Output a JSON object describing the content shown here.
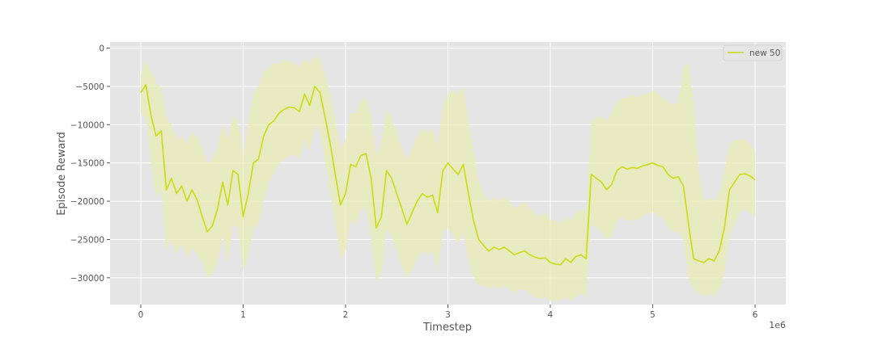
{
  "chart_data": {
    "type": "line",
    "title": "",
    "xlabel": "Timestep",
    "ylabel": "Episode Reward",
    "x_offset_label": "1e6",
    "xlim": [
      -0.3,
      6.3
    ],
    "ylim": [
      -33500,
      800
    ],
    "xticks": [
      0,
      1,
      2,
      3,
      4,
      5,
      6
    ],
    "xtick_labels": [
      "0",
      "1",
      "2",
      "3",
      "4",
      "5",
      "6"
    ],
    "yticks": [
      0,
      -5000,
      -10000,
      -15000,
      -20000,
      -25000,
      -30000
    ],
    "ytick_labels": [
      "0",
      "−5000",
      "−10000",
      "−15000",
      "−20000",
      "−25000",
      "−30000"
    ],
    "grid": true,
    "legend": {
      "placement": "top-right",
      "entries": [
        "new 50"
      ]
    },
    "colors": {
      "series": "#c8dc14",
      "band": "#e8ebb4",
      "background": "#e5e5e5",
      "grid": "#ffffff"
    },
    "series": [
      {
        "name": "new 50",
        "x": [
          0,
          0.05,
          0.1,
          0.15,
          0.2,
          0.25,
          0.3,
          0.35,
          0.4,
          0.45,
          0.5,
          0.55,
          0.6,
          0.65,
          0.7,
          0.75,
          0.8,
          0.85,
          0.9,
          0.95,
          1.0,
          1.05,
          1.1,
          1.15,
          1.2,
          1.25,
          1.3,
          1.35,
          1.4,
          1.45,
          1.5,
          1.55,
          1.6,
          1.65,
          1.7,
          1.75,
          1.8,
          1.85,
          1.9,
          1.95,
          2.0,
          2.05,
          2.1,
          2.15,
          2.2,
          2.25,
          2.3,
          2.35,
          2.4,
          2.45,
          2.5,
          2.55,
          2.6,
          2.65,
          2.7,
          2.75,
          2.8,
          2.85,
          2.9,
          2.95,
          3.0,
          3.05,
          3.1,
          3.15,
          3.2,
          3.25,
          3.3,
          3.35,
          3.4,
          3.45,
          3.5,
          3.55,
          3.6,
          3.65,
          3.7,
          3.75,
          3.8,
          3.85,
          3.9,
          3.95,
          4.0,
          4.05,
          4.1,
          4.15,
          4.2,
          4.25,
          4.3,
          4.35,
          4.4,
          4.45,
          4.5,
          4.55,
          4.6,
          4.65,
          4.7,
          4.75,
          4.8,
          4.85,
          4.9,
          4.95,
          5.0,
          5.05,
          5.1,
          5.15,
          5.2,
          5.25,
          5.3,
          5.35,
          5.4,
          5.45,
          5.5,
          5.55,
          5.6,
          5.65,
          5.7,
          5.75,
          5.8,
          5.85,
          5.9,
          5.95,
          6.0
        ],
        "values": [
          -5800,
          -4800,
          -8800,
          -11500,
          -10800,
          -18500,
          -17000,
          -19000,
          -18000,
          -20000,
          -18500,
          -19800,
          -22000,
          -24000,
          -23200,
          -21000,
          -17500,
          -20500,
          -16000,
          -16500,
          -22000,
          -19000,
          -15000,
          -14500,
          -11500,
          -10000,
          -9500,
          -8500,
          -8000,
          -7700,
          -7800,
          -8300,
          -6000,
          -7500,
          -5000,
          -5800,
          -9000,
          -12500,
          -16500,
          -20500,
          -19000,
          -15200,
          -15500,
          -14000,
          -13800,
          -17000,
          -23500,
          -22000,
          -16000,
          -17000,
          -19000,
          -21000,
          -23000,
          -21500,
          -20000,
          -19000,
          -19500,
          -19200,
          -21500,
          -16000,
          -15000,
          -15800,
          -16500,
          -15200,
          -19000,
          -22500,
          -25000,
          -25800,
          -26500,
          -26000,
          -26300,
          -26000,
          -26500,
          -27000,
          -26700,
          -26500,
          -27000,
          -27300,
          -27500,
          -27400,
          -28000,
          -28200,
          -28300,
          -27500,
          -28000,
          -27200,
          -27000,
          -27500,
          -16500,
          -17000,
          -17500,
          -18500,
          -17800,
          -16000,
          -15500,
          -15800,
          -15600,
          -15700,
          -15400,
          -15200,
          -15000,
          -15300,
          -15500,
          -16500,
          -17000,
          -16800,
          -18000,
          -23000,
          -27500,
          -27800,
          -28000,
          -27500,
          -27800,
          -26500,
          -23500,
          -18500,
          -17500,
          -16500,
          -16400,
          -16700,
          -17200
        ],
        "band_upper": [
          -3500,
          -1500,
          -3000,
          -4500,
          -5000,
          -9000,
          -10000,
          -12000,
          -11500,
          -12500,
          -11000,
          -11500,
          -13000,
          -15000,
          -14500,
          -13000,
          -10000,
          -12000,
          -9000,
          -9500,
          -14000,
          -10000,
          -6000,
          -5000,
          -3000,
          -2500,
          -2000,
          -2000,
          -1500,
          -1800,
          -2000,
          -2500,
          -1500,
          -2000,
          -1000,
          -1500,
          -3500,
          -6000,
          -9500,
          -13000,
          -12000,
          -8500,
          -8500,
          -7000,
          -6500,
          -9000,
          -14000,
          -12500,
          -8000,
          -9000,
          -11000,
          -13000,
          -14500,
          -13000,
          -11500,
          -10500,
          -11000,
          -10500,
          -13000,
          -7500,
          -6000,
          -5500,
          -6000,
          -5000,
          -9500,
          -13500,
          -17500,
          -19000,
          -20000,
          -19500,
          -20000,
          -19500,
          -20000,
          -21000,
          -20500,
          -20000,
          -21000,
          -21500,
          -22000,
          -21500,
          -22500,
          -22500,
          -23000,
          -22000,
          -22500,
          -21500,
          -21000,
          -21500,
          -9500,
          -9000,
          -9000,
          -9500,
          -8500,
          -7000,
          -6500,
          -6500,
          -6000,
          -6500,
          -6000,
          -6000,
          -5500,
          -6000,
          -6500,
          -7000,
          -7500,
          -7000,
          -2500,
          -2000,
          -7000,
          -16000,
          -20000,
          -19500,
          -20000,
          -19000,
          -16000,
          -12500,
          -12000,
          -12000,
          -12000,
          -12500,
          -13500
        ],
        "band_lower": [
          -8500,
          -9000,
          -15000,
          -19500,
          -18500,
          -26500,
          -25000,
          -27000,
          -25500,
          -27500,
          -26000,
          -27000,
          -28000,
          -30000,
          -29500,
          -28000,
          -24500,
          -28000,
          -23000,
          -23500,
          -29000,
          -27000,
          -23500,
          -23000,
          -20000,
          -17500,
          -16500,
          -15000,
          -14500,
          -14000,
          -14000,
          -14500,
          -12000,
          -13500,
          -10000,
          -11000,
          -15000,
          -19000,
          -23000,
          -27500,
          -26500,
          -22500,
          -23000,
          -21000,
          -21000,
          -25000,
          -30500,
          -29500,
          -23500,
          -24500,
          -26500,
          -28500,
          -30000,
          -29000,
          -27500,
          -26500,
          -27000,
          -26500,
          -29000,
          -24000,
          -23500,
          -24500,
          -25500,
          -24000,
          -27500,
          -30000,
          -31000,
          -31000,
          -31500,
          -31000,
          -31500,
          -31000,
          -31500,
          -32000,
          -31500,
          -31500,
          -32000,
          -32500,
          -32800,
          -32500,
          -33000,
          -33000,
          -33000,
          -32500,
          -33000,
          -32500,
          -32000,
          -32500,
          -23000,
          -23500,
          -24000,
          -25000,
          -24500,
          -22500,
          -22000,
          -22500,
          -22500,
          -22500,
          -22000,
          -21500,
          -21500,
          -22000,
          -22000,
          -23500,
          -24000,
          -24000,
          -25000,
          -30000,
          -31500,
          -32000,
          -32500,
          -32000,
          -32500,
          -31500,
          -29500,
          -24500,
          -23000,
          -21500,
          -21000,
          -21500,
          -22000
        ]
      }
    ]
  }
}
